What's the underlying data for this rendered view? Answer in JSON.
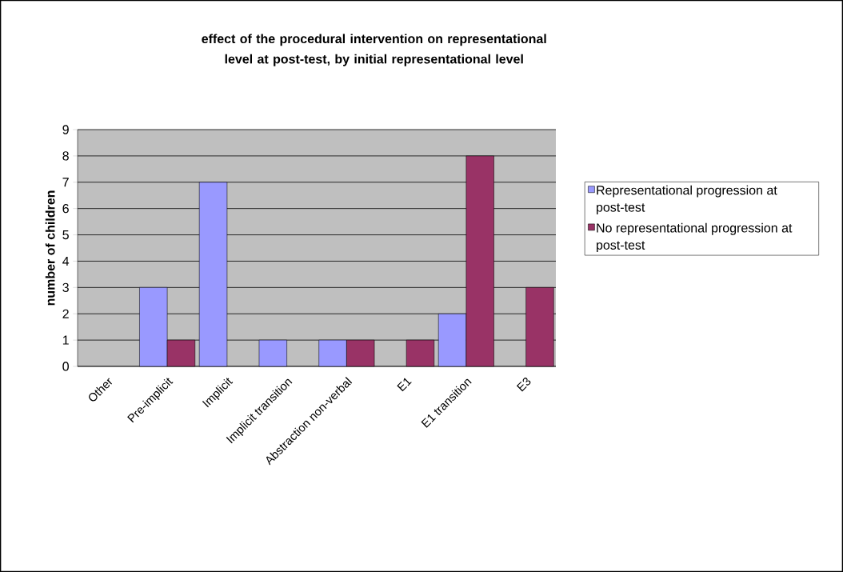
{
  "chart_data": {
    "type": "bar",
    "title": "effect of the procedural intervention on representational level at post-test, by initial representational level",
    "ylabel": "number of children",
    "categories": [
      "Other",
      "Pre-implicit",
      "Implicit",
      "Implicit transition",
      "Abstraction non-verbal",
      "E1",
      "E1 transition",
      "E3"
    ],
    "series": [
      {
        "name": "Representational progression at post-test",
        "color": "#9999ff",
        "values": [
          null,
          3,
          7,
          1,
          1,
          null,
          2,
          null
        ]
      },
      {
        "name": "No representational progression at post-test",
        "color": "#993366",
        "values": [
          null,
          1,
          null,
          null,
          1,
          1,
          8,
          3
        ]
      }
    ],
    "ylim": [
      0,
      9
    ],
    "yticks": [
      0,
      1,
      2,
      3,
      4,
      5,
      6,
      7,
      8,
      9
    ],
    "grid": "y",
    "legend": "right"
  }
}
